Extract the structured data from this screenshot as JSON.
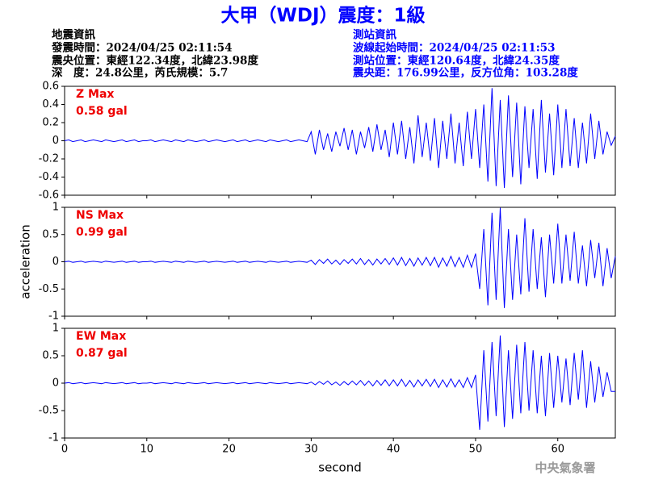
{
  "header": {
    "title": "大甲（WDJ）震度：1級",
    "left": [
      "地震資訊",
      "發震時間：2024/04/25 02:11:54",
      "震央位置：東經122.34度，北緯23.98度",
      "深　度：24.8公里，芮氏規模：5.7"
    ],
    "right": [
      "測站資訊",
      "波線起始時間：2024/04/25 02:11:53",
      "測站位置：東經120.64度，北緯24.35度",
      "震央距：176.99公里，反方位角：103.28度"
    ]
  },
  "footer": "中央氣象署",
  "chart_data": [
    {
      "type": "line",
      "annotation": [
        "Z Max",
        "0.58 gal"
      ],
      "annotation_color": "#ee0000",
      "x": [
        0,
        0.5,
        1,
        1.5,
        2,
        2.5,
        3,
        3.5,
        4,
        4.5,
        5,
        5.5,
        6,
        6.5,
        7,
        7.5,
        8,
        8.5,
        9,
        9.5,
        10,
        10.5,
        11,
        11.5,
        12,
        12.5,
        13,
        13.5,
        14,
        14.5,
        15,
        15.5,
        16,
        16.5,
        17,
        17.5,
        18,
        18.5,
        19,
        19.5,
        20,
        20.5,
        21,
        21.5,
        22,
        22.5,
        23,
        23.5,
        24,
        24.5,
        25,
        25.5,
        26,
        26.5,
        27,
        27.5,
        28,
        28.5,
        29,
        29.5,
        30,
        30.5,
        31,
        31.5,
        32,
        32.5,
        33,
        33.5,
        34,
        34.5,
        35,
        35.5,
        36,
        36.5,
        37,
        37.5,
        38,
        38.5,
        39,
        39.5,
        40,
        40.5,
        41,
        41.5,
        42,
        42.5,
        43,
        43.5,
        44,
        44.5,
        45,
        45.5,
        46,
        46.5,
        47,
        47.5,
        48,
        48.5,
        49,
        49.5,
        50,
        50.5,
        51,
        51.5,
        52,
        52.5,
        53,
        53.5,
        54,
        54.5,
        55,
        55.5,
        56,
        56.5,
        57,
        57.5,
        58,
        58.5,
        59,
        59.5,
        60,
        60.5,
        61,
        61.5,
        62,
        62.5,
        63,
        63.5,
        64,
        64.5,
        65,
        65.5,
        66,
        66.5,
        67
      ],
      "series": [
        {
          "color": "#0000ff",
          "values": [
            0,
            0.01,
            -0.01,
            0,
            0.01,
            -0.01,
            0,
            0.01,
            0,
            -0.01,
            0.01,
            0,
            -0.01,
            0,
            0.01,
            -0.01,
            0,
            0.01,
            -0.01,
            0,
            0,
            0.01,
            -0.01,
            0,
            0.01,
            0,
            -0.01,
            0.01,
            0,
            -0.01,
            0.01,
            0,
            -0.01,
            0,
            0.01,
            -0.01,
            0,
            0.01,
            0,
            -0.01,
            0,
            0.01,
            -0.01,
            0,
            0.01,
            -0.01,
            0,
            0.01,
            0,
            -0.01,
            0.01,
            0,
            -0.01,
            0,
            0.01,
            -0.01,
            0,
            0.01,
            0,
            -0.01,
            0.1,
            -0.15,
            0.12,
            -0.1,
            0.08,
            -0.12,
            0.1,
            -0.06,
            0.14,
            -0.1,
            0.12,
            -0.15,
            0.1,
            -0.08,
            0.15,
            -0.12,
            0.18,
            -0.1,
            0.12,
            -0.18,
            0.2,
            -0.15,
            0.22,
            -0.2,
            0.15,
            -0.25,
            0.28,
            -0.18,
            0.2,
            -0.22,
            0.25,
            -0.3,
            0.22,
            -0.2,
            0.3,
            -0.25,
            0.2,
            -0.28,
            0.32,
            -0.2,
            0.35,
            -0.3,
            0.4,
            -0.45,
            0.58,
            -0.5,
            0.45,
            -0.52,
            0.5,
            -0.4,
            0.42,
            -0.48,
            0.38,
            -0.3,
            0.35,
            -0.42,
            0.45,
            -0.35,
            0.3,
            -0.38,
            0.4,
            -0.3,
            0.35,
            -0.28,
            0.25,
            -0.3,
            0.2,
            -0.25,
            0.3,
            -0.2,
            0.22,
            -0.15,
            0.1,
            -0.05,
            0.05
          ]
        }
      ],
      "xlim": [
        0,
        67
      ],
      "xticks": [
        0,
        10,
        20,
        30,
        40,
        50,
        60
      ],
      "ylim": [
        -0.6,
        0.6
      ],
      "yticks": [
        0.6,
        0.4,
        0.2,
        0,
        -0.2,
        -0.4,
        -0.6
      ]
    },
    {
      "type": "line",
      "annotation": [
        "NS Max",
        "0.99 gal"
      ],
      "annotation_color": "#ee0000",
      "ylabel": "acceleration",
      "x": [
        0,
        0.5,
        1,
        1.5,
        2,
        2.5,
        3,
        3.5,
        4,
        4.5,
        5,
        5.5,
        6,
        6.5,
        7,
        7.5,
        8,
        8.5,
        9,
        9.5,
        10,
        10.5,
        11,
        11.5,
        12,
        12.5,
        13,
        13.5,
        14,
        14.5,
        15,
        15.5,
        16,
        16.5,
        17,
        17.5,
        18,
        18.5,
        19,
        19.5,
        20,
        20.5,
        21,
        21.5,
        22,
        22.5,
        23,
        23.5,
        24,
        24.5,
        25,
        25.5,
        26,
        26.5,
        27,
        27.5,
        28,
        28.5,
        29,
        29.5,
        30,
        30.5,
        31,
        31.5,
        32,
        32.5,
        33,
        33.5,
        34,
        34.5,
        35,
        35.5,
        36,
        36.5,
        37,
        37.5,
        38,
        38.5,
        39,
        39.5,
        40,
        40.5,
        41,
        41.5,
        42,
        42.5,
        43,
        43.5,
        44,
        44.5,
        45,
        45.5,
        46,
        46.5,
        47,
        47.5,
        48,
        48.5,
        49,
        49.5,
        50,
        50.5,
        51,
        51.5,
        52,
        52.5,
        53,
        53.5,
        54,
        54.5,
        55,
        55.5,
        56,
        56.5,
        57,
        57.5,
        58,
        58.5,
        59,
        59.5,
        60,
        60.5,
        61,
        61.5,
        62,
        62.5,
        63,
        63.5,
        64,
        64.5,
        65,
        65.5,
        66,
        66.5,
        67
      ],
      "series": [
        {
          "color": "#0000ff",
          "values": [
            0,
            0.01,
            -0.01,
            0,
            0.01,
            -0.01,
            0,
            0.01,
            0,
            -0.01,
            0.01,
            0,
            -0.01,
            0,
            0.01,
            -0.01,
            0,
            0.01,
            -0.01,
            0,
            0,
            0.01,
            -0.01,
            0,
            0.01,
            0,
            -0.01,
            0.01,
            0,
            -0.01,
            0.01,
            0,
            -0.01,
            0,
            0.01,
            -0.01,
            0,
            0.01,
            0,
            -0.01,
            0,
            0.01,
            -0.01,
            0,
            0.01,
            -0.01,
            0,
            0.01,
            0,
            -0.01,
            0.01,
            0,
            -0.01,
            0,
            0.01,
            -0.01,
            0,
            0.01,
            0,
            -0.01,
            0.03,
            -0.05,
            0.04,
            -0.03,
            0.05,
            -0.04,
            0.03,
            -0.05,
            0.04,
            -0.03,
            0.05,
            -0.04,
            0.06,
            -0.05,
            0.04,
            -0.06,
            0.05,
            -0.04,
            0.06,
            -0.05,
            0.07,
            -0.06,
            0.08,
            -0.07,
            0.06,
            -0.08,
            0.07,
            -0.06,
            0.08,
            -0.07,
            0.08,
            -0.1,
            0.07,
            -0.08,
            0.1,
            -0.09,
            0.08,
            -0.1,
            0.12,
            -0.1,
            0.15,
            -0.5,
            0.6,
            -0.8,
            0.9,
            -0.7,
            0.99,
            -0.85,
            0.6,
            -0.7,
            0.5,
            -0.6,
            0.8,
            -0.55,
            0.6,
            -0.5,
            0.45,
            -0.65,
            0.5,
            -0.4,
            0.7,
            -0.4,
            0.5,
            -0.35,
            0.55,
            -0.4,
            0.3,
            -0.45,
            0.4,
            -0.3,
            0.35,
            -0.45,
            0.25,
            -0.3,
            0.1
          ]
        }
      ],
      "xlim": [
        0,
        67
      ],
      "xticks": [
        0,
        10,
        20,
        30,
        40,
        50,
        60
      ],
      "ylim": [
        -1,
        1
      ],
      "yticks": [
        1,
        0.5,
        0,
        -0.5,
        -1
      ]
    },
    {
      "type": "line",
      "annotation": [
        "EW Max",
        "0.87 gal"
      ],
      "annotation_color": "#ee0000",
      "xlabel": "second",
      "x": [
        0,
        0.5,
        1,
        1.5,
        2,
        2.5,
        3,
        3.5,
        4,
        4.5,
        5,
        5.5,
        6,
        6.5,
        7,
        7.5,
        8,
        8.5,
        9,
        9.5,
        10,
        10.5,
        11,
        11.5,
        12,
        12.5,
        13,
        13.5,
        14,
        14.5,
        15,
        15.5,
        16,
        16.5,
        17,
        17.5,
        18,
        18.5,
        19,
        19.5,
        20,
        20.5,
        21,
        21.5,
        22,
        22.5,
        23,
        23.5,
        24,
        24.5,
        25,
        25.5,
        26,
        26.5,
        27,
        27.5,
        28,
        28.5,
        29,
        29.5,
        30,
        30.5,
        31,
        31.5,
        32,
        32.5,
        33,
        33.5,
        34,
        34.5,
        35,
        35.5,
        36,
        36.5,
        37,
        37.5,
        38,
        38.5,
        39,
        39.5,
        40,
        40.5,
        41,
        41.5,
        42,
        42.5,
        43,
        43.5,
        44,
        44.5,
        45,
        45.5,
        46,
        46.5,
        47,
        47.5,
        48,
        48.5,
        49,
        49.5,
        50,
        50.5,
        51,
        51.5,
        52,
        52.5,
        53,
        53.5,
        54,
        54.5,
        55,
        55.5,
        56,
        56.5,
        57,
        57.5,
        58,
        58.5,
        59,
        59.5,
        60,
        60.5,
        61,
        61.5,
        62,
        62.5,
        63,
        63.5,
        64,
        64.5,
        65,
        65.5,
        66,
        66.5,
        67
      ],
      "series": [
        {
          "color": "#0000ff",
          "values": [
            0,
            0.01,
            -0.01,
            0,
            0.01,
            -0.01,
            0,
            0.01,
            0,
            -0.01,
            0.01,
            0,
            -0.01,
            0,
            0.01,
            -0.01,
            0,
            0.01,
            -0.01,
            0,
            0,
            0.01,
            -0.01,
            0,
            0.01,
            0,
            -0.01,
            0.01,
            0,
            -0.01,
            0.01,
            0,
            -0.01,
            0,
            0.01,
            -0.01,
            0,
            0.01,
            0,
            -0.01,
            0,
            0.01,
            -0.01,
            0,
            0.01,
            -0.01,
            0,
            0.01,
            0,
            -0.01,
            0.01,
            0,
            -0.01,
            0,
            0.01,
            -0.01,
            0,
            0.01,
            0,
            -0.01,
            0.02,
            -0.03,
            0.03,
            -0.02,
            0.04,
            -0.03,
            0.02,
            -0.04,
            0.03,
            -0.03,
            0.04,
            -0.03,
            0.05,
            -0.04,
            0.04,
            -0.05,
            0.05,
            -0.04,
            0.06,
            -0.05,
            0.06,
            -0.05,
            0.07,
            -0.06,
            0.05,
            -0.07,
            0.06,
            -0.05,
            0.07,
            -0.06,
            0.07,
            -0.08,
            0.06,
            -0.07,
            0.08,
            -0.07,
            0.06,
            -0.08,
            0.1,
            -0.08,
            0.15,
            -0.85,
            0.6,
            -0.7,
            0.75,
            -0.6,
            0.87,
            -0.8,
            0.6,
            -0.65,
            0.7,
            -0.55,
            0.75,
            -0.5,
            0.6,
            -0.55,
            0.5,
            -0.6,
            0.55,
            -0.45,
            0.5,
            -0.35,
            0.45,
            -0.4,
            0.55,
            -0.3,
            0.6,
            -0.45,
            0.4,
            -0.35,
            0.3,
            -0.25,
            0.2,
            -0.15,
            -0.15
          ]
        }
      ],
      "xlim": [
        0,
        67
      ],
      "xticks": [
        0,
        10,
        20,
        30,
        40,
        50,
        60
      ],
      "ylim": [
        -1,
        1
      ],
      "yticks": [
        1,
        0.5,
        0,
        -0.5,
        -1
      ]
    }
  ]
}
